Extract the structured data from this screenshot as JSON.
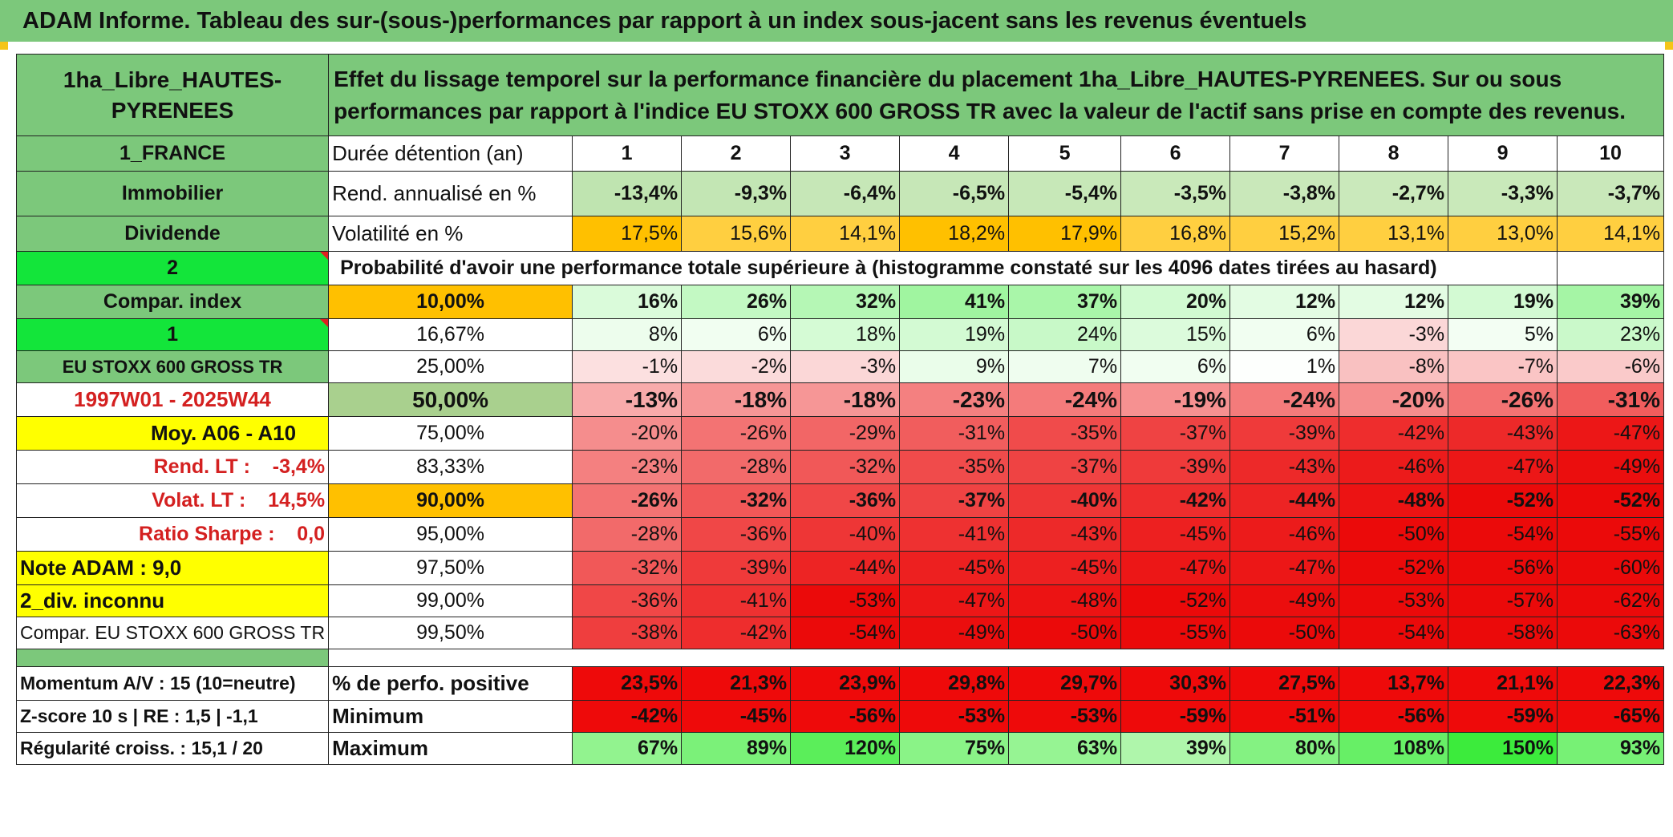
{
  "banner": {
    "title": "ADAM Informe. Tableau des sur-(sous-)performances par rapport à un index sous-jacent sans les revenus éventuels"
  },
  "header": {
    "asset": "1ha_Libre_HAUTES-PYRENEES",
    "description": "Effet du lissage temporel sur la performance financière du placement 1ha_Libre_HAUTES-PYRENEES. Sur ou sous performances par rapport à l'indice EU STOXX 600 GROSS TR avec la valeur de l'actif sans prise en compte des revenus."
  },
  "left": {
    "country": "1_FRANCE",
    "category": "Immobilier",
    "type": "Dividende",
    "code2": "2",
    "compar_index": "Compar. index",
    "code1": "1",
    "index_name": "EU STOXX 600 GROSS TR",
    "period": "1997W01 - 2025W44",
    "moy": "Moy. A06 - A10",
    "rend_lt": "Rend. LT :    -3,4%",
    "volat_lt": "Volat. LT :    14,5%",
    "sharpe": "Ratio Sharpe :    0,0",
    "note": "Note ADAM : 9,0",
    "div": "2_div. inconnu",
    "compar_full": "Compar. EU STOXX 600 GROSS TR",
    "momentum": "Momentum A/V : 15 (10=neutre)",
    "zscore": "Z-score 10 s | RE : 1,5 | -1,1",
    "regularite": "Régularité croiss. : 15,1 / 20"
  },
  "labels": {
    "duree": "Durée détention (an)",
    "rend": "Rend. annualisé en %",
    "vol": "Volatilité en %",
    "proba": "Probabilité d'avoir une performance totale supérieure à (histogramme constaté sur les 4096 dates tirées au hasard)",
    "pos": "% de perfo. positive",
    "min": "Minimum",
    "max": "Maximum"
  },
  "years": [
    "1",
    "2",
    "3",
    "4",
    "5",
    "6",
    "7",
    "8",
    "9",
    "10"
  ],
  "rend": [
    "-13,4%",
    "-9,3%",
    "-6,4%",
    "-6,5%",
    "-5,4%",
    "-3,5%",
    "-3,8%",
    "-2,7%",
    "-3,3%",
    "-3,7%"
  ],
  "vol": [
    "17,5%",
    "15,6%",
    "14,1%",
    "18,2%",
    "17,9%",
    "16,8%",
    "15,2%",
    "13,1%",
    "13,0%",
    "14,1%"
  ],
  "percentiles": [
    {
      "p": "10,00%",
      "v": [
        "16%",
        "26%",
        "32%",
        "41%",
        "37%",
        "20%",
        "12%",
        "12%",
        "19%",
        "39%"
      ]
    },
    {
      "p": "16,67%",
      "v": [
        "8%",
        "6%",
        "18%",
        "19%",
        "24%",
        "15%",
        "6%",
        "-3%",
        "5%",
        "23%"
      ]
    },
    {
      "p": "25,00%",
      "v": [
        "-1%",
        "-2%",
        "-3%",
        "9%",
        "7%",
        "6%",
        "1%",
        "-8%",
        "-7%",
        "-6%"
      ]
    },
    {
      "p": "50,00%",
      "v": [
        "-13%",
        "-18%",
        "-18%",
        "-23%",
        "-24%",
        "-19%",
        "-24%",
        "-20%",
        "-26%",
        "-31%"
      ]
    },
    {
      "p": "75,00%",
      "v": [
        "-20%",
        "-26%",
        "-29%",
        "-31%",
        "-35%",
        "-37%",
        "-39%",
        "-42%",
        "-43%",
        "-47%"
      ]
    },
    {
      "p": "83,33%",
      "v": [
        "-23%",
        "-28%",
        "-32%",
        "-35%",
        "-37%",
        "-39%",
        "-43%",
        "-46%",
        "-47%",
        "-49%"
      ]
    },
    {
      "p": "90,00%",
      "v": [
        "-26%",
        "-32%",
        "-36%",
        "-37%",
        "-40%",
        "-42%",
        "-44%",
        "-48%",
        "-52%",
        "-52%"
      ]
    },
    {
      "p": "95,00%",
      "v": [
        "-28%",
        "-36%",
        "-40%",
        "-41%",
        "-43%",
        "-45%",
        "-46%",
        "-50%",
        "-54%",
        "-55%"
      ]
    },
    {
      "p": "97,50%",
      "v": [
        "-32%",
        "-39%",
        "-44%",
        "-45%",
        "-45%",
        "-47%",
        "-47%",
        "-52%",
        "-56%",
        "-60%"
      ]
    },
    {
      "p": "99,00%",
      "v": [
        "-36%",
        "-41%",
        "-53%",
        "-47%",
        "-48%",
        "-52%",
        "-49%",
        "-53%",
        "-57%",
        "-62%"
      ]
    },
    {
      "p": "99,50%",
      "v": [
        "-38%",
        "-42%",
        "-54%",
        "-49%",
        "-50%",
        "-55%",
        "-50%",
        "-54%",
        "-58%",
        "-63%"
      ]
    }
  ],
  "pos": [
    "23,5%",
    "21,3%",
    "23,9%",
    "29,8%",
    "29,7%",
    "30,3%",
    "27,5%",
    "13,7%",
    "21,1%",
    "22,3%"
  ],
  "min": [
    "-42%",
    "-45%",
    "-56%",
    "-53%",
    "-53%",
    "-59%",
    "-51%",
    "-56%",
    "-59%",
    "-65%"
  ],
  "max": [
    "67%",
    "89%",
    "120%",
    "75%",
    "63%",
    "39%",
    "80%",
    "108%",
    "150%",
    "93%"
  ],
  "colors": {
    "header_green": "#7cc87b",
    "bright_green": "#13e53a",
    "yellow": "#ffff00",
    "orange": "#ffc000",
    "red_text": "#d42020"
  }
}
